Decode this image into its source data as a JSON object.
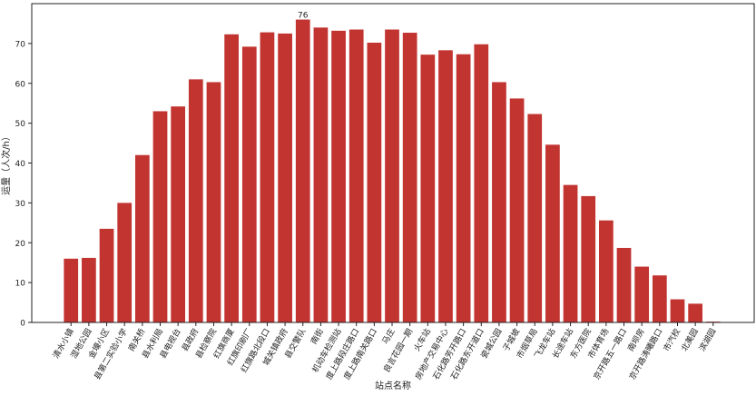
{
  "chart_data": {
    "type": "bar",
    "y_label": "运量（人次/h）",
    "x_label": "站点名称",
    "categories": [
      "清水小镇",
      "湿地公园",
      "金壕小区",
      "县第二实验小学",
      "南关桥",
      "县水利局",
      "县电视台",
      "县政府",
      "县检察院",
      "红旗商厦",
      "红旗印刷厂",
      "红旗路北段口",
      "城关镇政府",
      "县交警队",
      "南街",
      "机动车检测站",
      "度上路段庄路口",
      "度上路南关路口",
      "马庄",
      "良言花园一期",
      "火车站",
      "房地产交易中心",
      "石化路芳开路口",
      "石化路东开道口",
      "瓷城公园",
      "子城坡",
      "市烟草局",
      "飞龙车站",
      "长途车站",
      "东方医院",
      "市体育场",
      "京开路五一路口",
      "南坝房",
      "京开路涛曦路口",
      "市汽校",
      "北美园",
      "滨湖园"
    ],
    "series": [
      {
        "name": "运量",
        "color": "#c23430",
        "values": [
          16,
          16.2,
          23.5,
          30,
          42,
          53,
          54.2,
          61,
          60.3,
          72.3,
          69.2,
          72.8,
          72.5,
          76,
          74,
          73.2,
          73.5,
          70.2,
          73.5,
          72.7,
          67.2,
          68.3,
          67.3,
          69.8,
          60.3,
          56.2,
          52.3,
          44.6,
          34.5,
          31.7,
          25.6,
          18.7,
          14,
          11.8,
          5.8,
          4.7,
          0.2
        ]
      }
    ],
    "annotation_index": 13,
    "ylim": [
      0,
      80
    ],
    "yticks": [
      0,
      10,
      20,
      30,
      40,
      50,
      60,
      70
    ],
    "grid": false
  }
}
